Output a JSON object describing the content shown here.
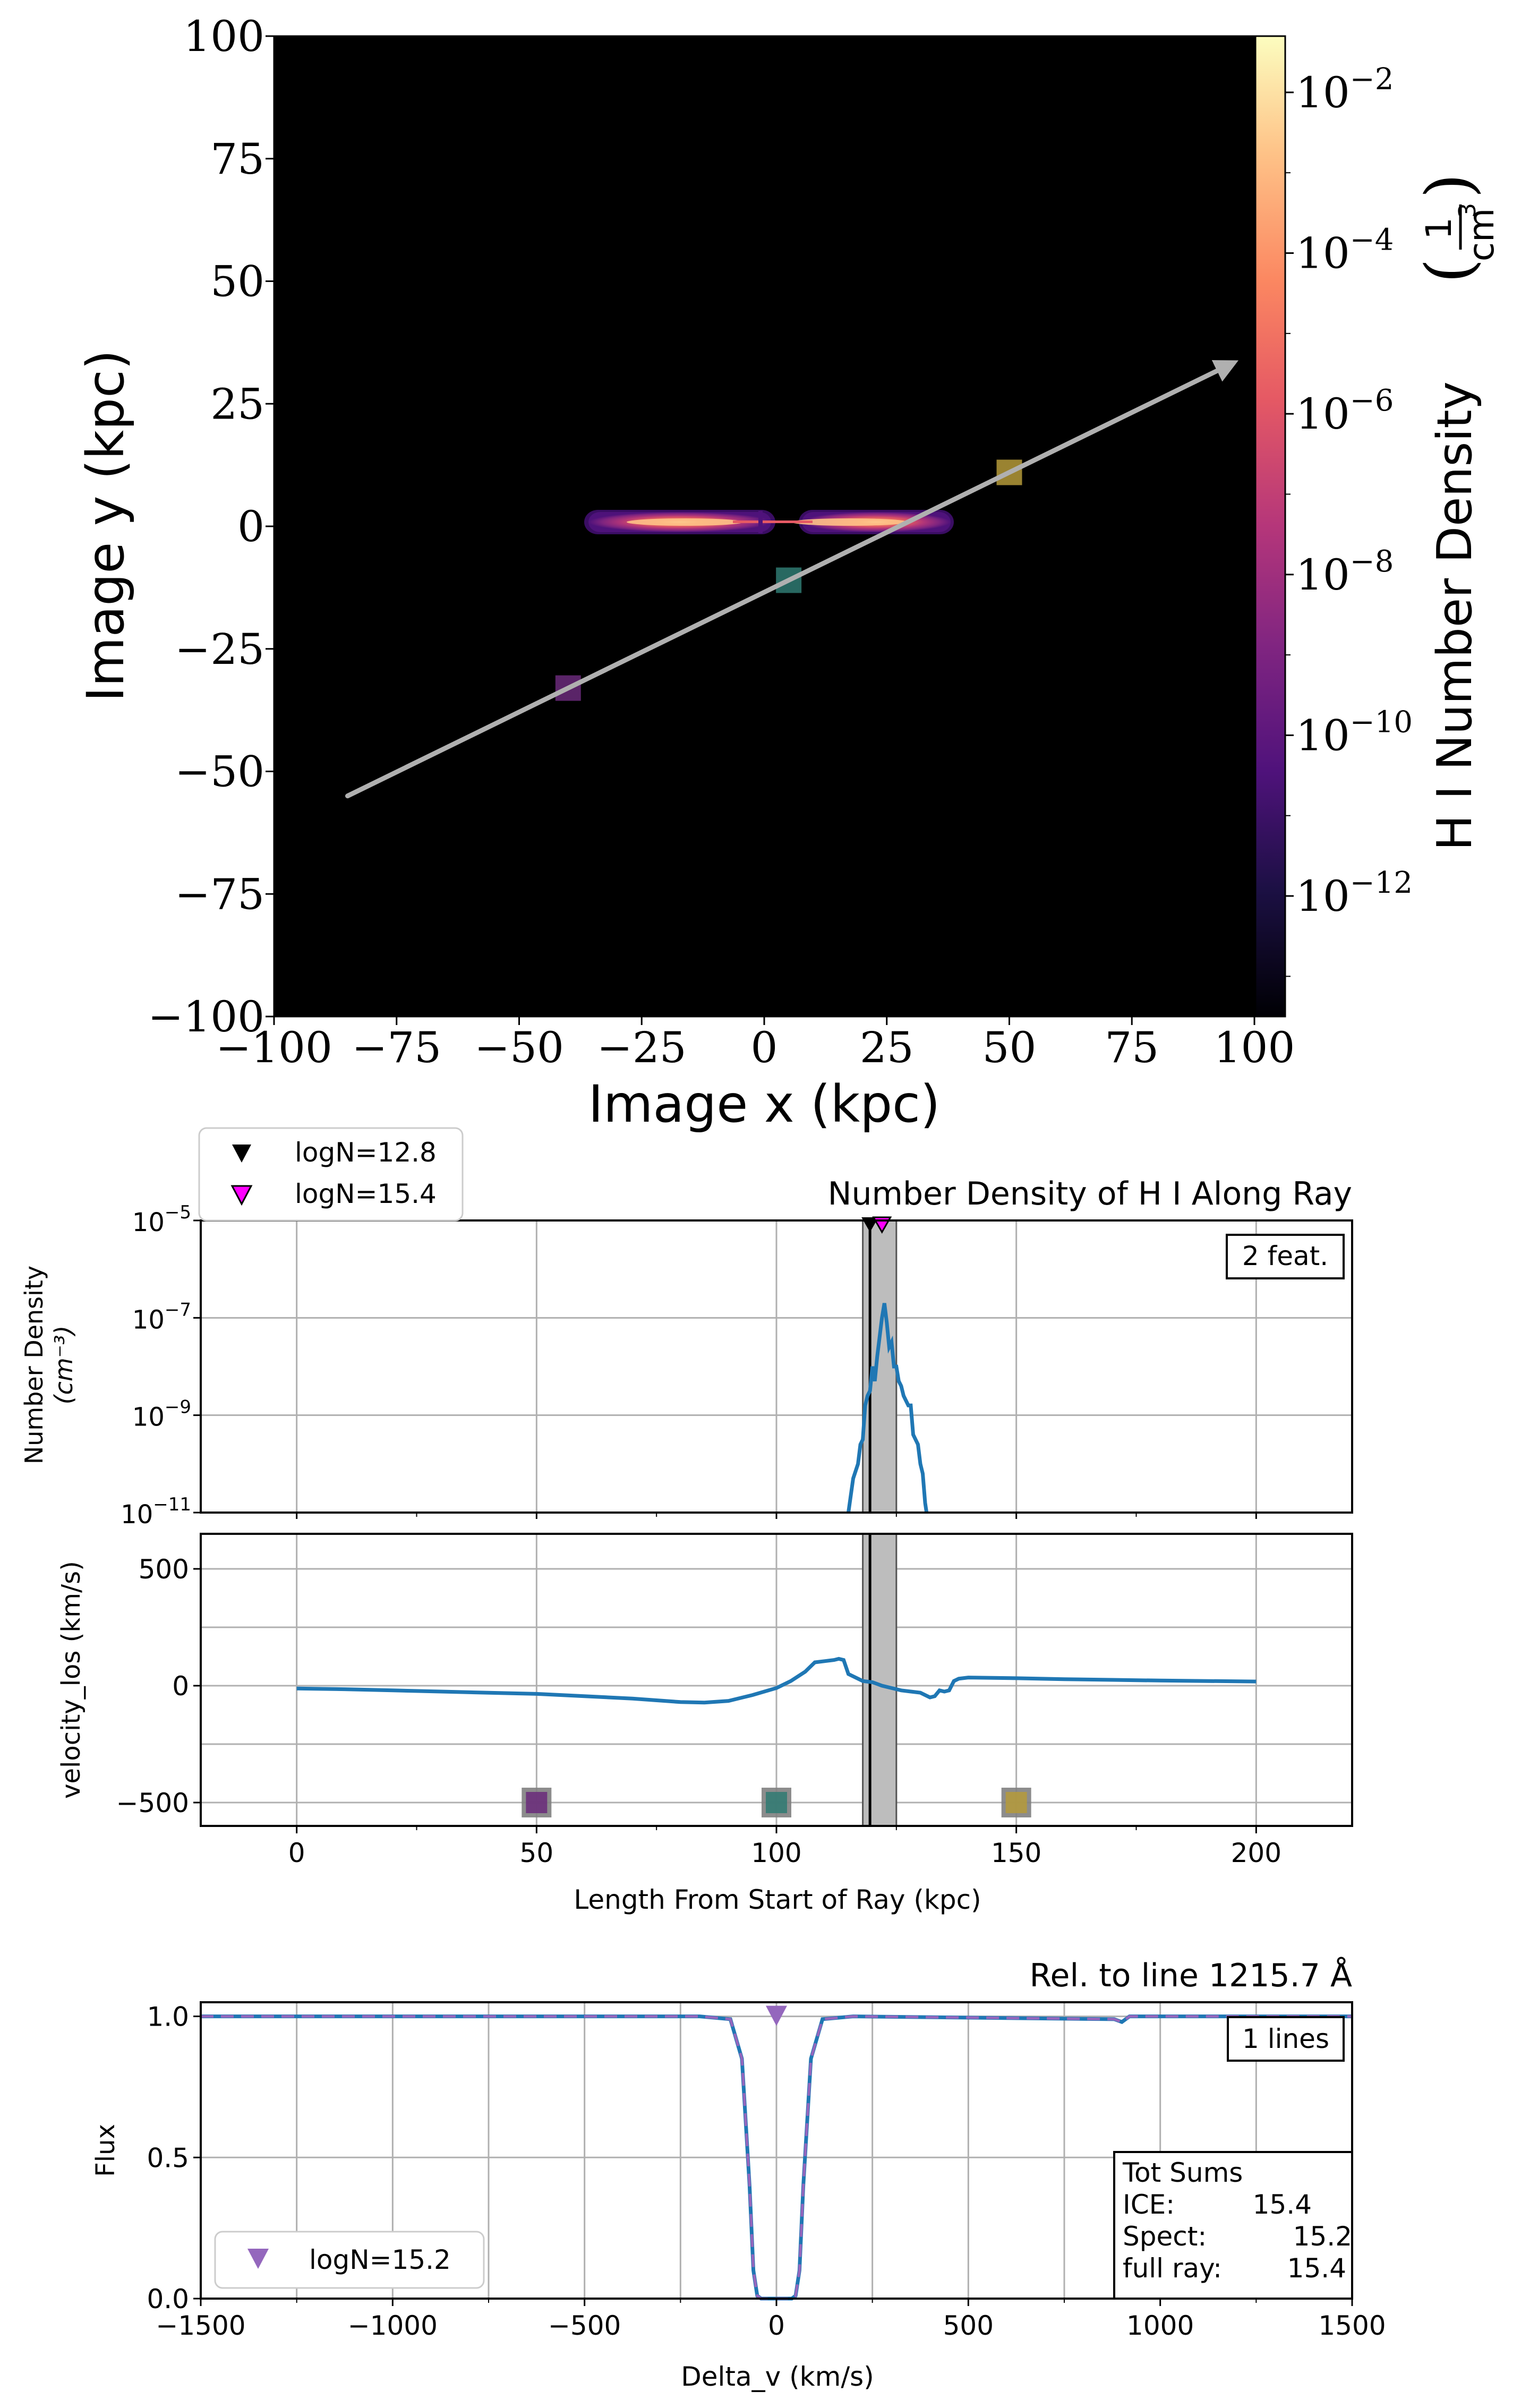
{
  "chart_data": [
    {
      "type": "heatmap",
      "panel": "projection",
      "xlabel": "Image x  (kpc)",
      "ylabel": "Image y  (kpc)",
      "xlim": [
        -100,
        100
      ],
      "ylim": [
        -100,
        100
      ],
      "xticks": [
        -100,
        -75,
        -50,
        -25,
        0,
        25,
        50,
        75,
        100
      ],
      "yticks": [
        -100,
        -75,
        -50,
        -25,
        0,
        25,
        50,
        75,
        100
      ],
      "xtick_labels": [
        "−100",
        "−75",
        "−50",
        "−25",
        "0",
        "25",
        "50",
        "75",
        "100"
      ],
      "ytick_labels": [
        "−100",
        "−75",
        "−50",
        "−25",
        "0",
        "25",
        "50",
        "75",
        "100"
      ],
      "colorbar": {
        "label": "H I Number Density",
        "unit_num": "1",
        "unit_den": "cm",
        "unit_den_exp": "3",
        "scale": "log",
        "range_exp": [
          -13.5,
          -1.3
        ],
        "tick_base": "10",
        "tick_exponents": [
          "−2",
          "−4",
          "−6",
          "−8",
          "−10",
          "−12"
        ],
        "tick_values": [
          -2,
          -4,
          -6,
          -8,
          -10,
          -12
        ],
        "colormap": "magma"
      },
      "ray": {
        "start": [
          -85,
          -55
        ],
        "end": [
          95,
          33
        ],
        "color": "#b0b0b0"
      },
      "markers": [
        {
          "x": -40,
          "y": -33,
          "color": "#6a2a7a"
        },
        {
          "x": 5,
          "y": -11,
          "color": "#2f7a72"
        },
        {
          "x": 50,
          "y": 11,
          "color": "#b59a3a"
        }
      ],
      "disk": {
        "x_extent": [
          -37,
          38
        ],
        "y_extent": [
          -2.8,
          2.8
        ],
        "peak_positions": [
          -17,
          17
        ]
      }
    },
    {
      "type": "line",
      "panel": "number_density",
      "title": "Number Density of H I Along Ray",
      "ylabel_line1": "Number Density",
      "ylabel_line2": "(cm⁻³)",
      "yscale": "log",
      "xlim": [
        -20,
        220
      ],
      "ylim_exp": [
        -11,
        -5
      ],
      "ytick_exponents": [
        "−5",
        "−7",
        "−9",
        "−11"
      ],
      "ytick_values": [
        -5,
        -7,
        -9,
        -11
      ],
      "feature_box": "2 feat.",
      "legend": [
        {
          "label": "logN=12.8",
          "color": "#000000"
        },
        {
          "label": "logN=15.4",
          "color": "#ff00ff"
        }
      ],
      "shaded_region": [
        118,
        125
      ],
      "vline": 119.5,
      "series": [
        {
          "name": "H I number density",
          "x": [
            115,
            116,
            117,
            117.5,
            118,
            118.5,
            119,
            119.5,
            120,
            120.5,
            121,
            121.5,
            122,
            122.5,
            123,
            123.5,
            124,
            124.5,
            125,
            125.5,
            126,
            126.5,
            127,
            127.5,
            128,
            128.5,
            129,
            129.5,
            130,
            130.5,
            131,
            131.3
          ],
          "log_y": [
            -11.0,
            -10.3,
            -10.0,
            -9.6,
            -9.5,
            -8.8,
            -8.6,
            -8.5,
            -8.0,
            -8.3,
            -7.8,
            -7.4,
            -7.0,
            -6.7,
            -7.1,
            -7.6,
            -7.5,
            -8.0,
            -8.0,
            -8.3,
            -8.4,
            -8.6,
            -8.7,
            -8.8,
            -8.8,
            -9.4,
            -9.5,
            -9.6,
            -10.0,
            -10.2,
            -10.8,
            -11.0
          ]
        }
      ]
    },
    {
      "type": "line",
      "panel": "velocity",
      "ylabel": "velocity_los (km/s)",
      "xlabel": "Length From Start of Ray (kpc)",
      "xlim": [
        -20,
        220
      ],
      "ylim": [
        -600,
        650
      ],
      "xticks": [
        0,
        50,
        100,
        150,
        200
      ],
      "xtick_labels": [
        "0",
        "50",
        "100",
        "150",
        "200"
      ],
      "yticks": [
        500,
        0,
        -500
      ],
      "ytick_labels": [
        "500",
        "0",
        "−500"
      ],
      "shaded_region": [
        118,
        125
      ],
      "vline": 119.5,
      "markers": [
        {
          "x": 50,
          "y": -500,
          "color": "#6a2a7a"
        },
        {
          "x": 100,
          "y": -500,
          "color": "#2f7a72"
        },
        {
          "x": 150,
          "y": -500,
          "color": "#b59a3a"
        }
      ],
      "series": [
        {
          "name": "velocity_los",
          "x": [
            0,
            10,
            20,
            30,
            40,
            50,
            60,
            70,
            80,
            85,
            90,
            95,
            100,
            103,
            106,
            108,
            110,
            112,
            113,
            114,
            115,
            118,
            120,
            122,
            124,
            126,
            128,
            130,
            132,
            133,
            134,
            135,
            136,
            137,
            138,
            140,
            150,
            160,
            170,
            180,
            190,
            200
          ],
          "y": [
            -12,
            -15,
            -20,
            -25,
            -30,
            -35,
            -45,
            -55,
            -70,
            -72,
            -65,
            -40,
            -10,
            20,
            60,
            100,
            105,
            110,
            115,
            110,
            50,
            20,
            15,
            0,
            -10,
            -20,
            -25,
            -30,
            -50,
            -45,
            -20,
            -25,
            -20,
            20,
            30,
            35,
            32,
            28,
            25,
            22,
            20,
            18
          ]
        }
      ]
    },
    {
      "type": "line",
      "panel": "spectrum",
      "title": "Rel. to line 1215.7 Å",
      "xlabel": "Delta_v (km/s)",
      "ylabel": "Flux",
      "xlim": [
        -1500,
        1500
      ],
      "ylim": [
        0.0,
        1.05
      ],
      "xticks": [
        -1500,
        -1000,
        -500,
        0,
        500,
        1000,
        1500
      ],
      "xtick_labels": [
        "−1500",
        "−1000",
        "−500",
        "0",
        "500",
        "1000",
        "1500"
      ],
      "yticks": [
        0.0,
        0.5,
        1.0
      ],
      "ytick_labels": [
        "0.0",
        "0.5",
        "1.0"
      ],
      "lines_box": "1 lines",
      "legend": [
        {
          "label": "logN=15.2",
          "color": "#9467bd"
        }
      ],
      "marker": {
        "x": 0,
        "y": 1.0,
        "color": "#9467bd"
      },
      "sums": {
        "title": "Tot Sums",
        "rows": [
          {
            "label": "ICE:",
            "value": "15.4"
          },
          {
            "label": "Spect:",
            "value": "15.2"
          },
          {
            "label": "full ray:",
            "value": "15.4"
          }
        ]
      },
      "series": [
        {
          "name": "flux",
          "x": [
            -1500,
            -200,
            -120,
            -90,
            -70,
            -60,
            -50,
            -40,
            40,
            50,
            60,
            70,
            90,
            120,
            200,
            880,
            900,
            920,
            1500
          ],
          "y": [
            1.0,
            1.0,
            0.99,
            0.85,
            0.4,
            0.1,
            0.01,
            0.0,
            0.0,
            0.01,
            0.1,
            0.4,
            0.85,
            0.99,
            1.0,
            0.99,
            0.98,
            1.0,
            1.0
          ]
        }
      ]
    }
  ]
}
